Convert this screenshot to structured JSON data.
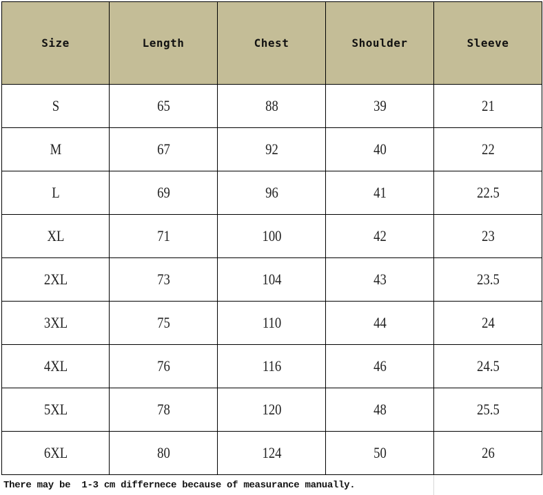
{
  "table": {
    "header_color": "#c4bd97",
    "columns": [
      "Size",
      "Length",
      "Chest",
      "Shoulder",
      "Sleeve"
    ],
    "rows": [
      [
        "S",
        "65",
        "88",
        "39",
        "21"
      ],
      [
        "M",
        "67",
        "92",
        "40",
        "22"
      ],
      [
        "L",
        "69",
        "96",
        "41",
        "22.5"
      ],
      [
        "XL",
        "71",
        "100",
        "42",
        "23"
      ],
      [
        "2XL",
        "73",
        "104",
        "43",
        "23.5"
      ],
      [
        "3XL",
        "75",
        "110",
        "44",
        "24"
      ],
      [
        "4XL",
        "76",
        "116",
        "46",
        "24.5"
      ],
      [
        "5XL",
        "78",
        "120",
        "48",
        "25.5"
      ],
      [
        "6XL",
        "80",
        "124",
        "50",
        "26"
      ]
    ]
  },
  "footer": {
    "note": "There may be  1-3 cm differnece because of measurance manually."
  }
}
